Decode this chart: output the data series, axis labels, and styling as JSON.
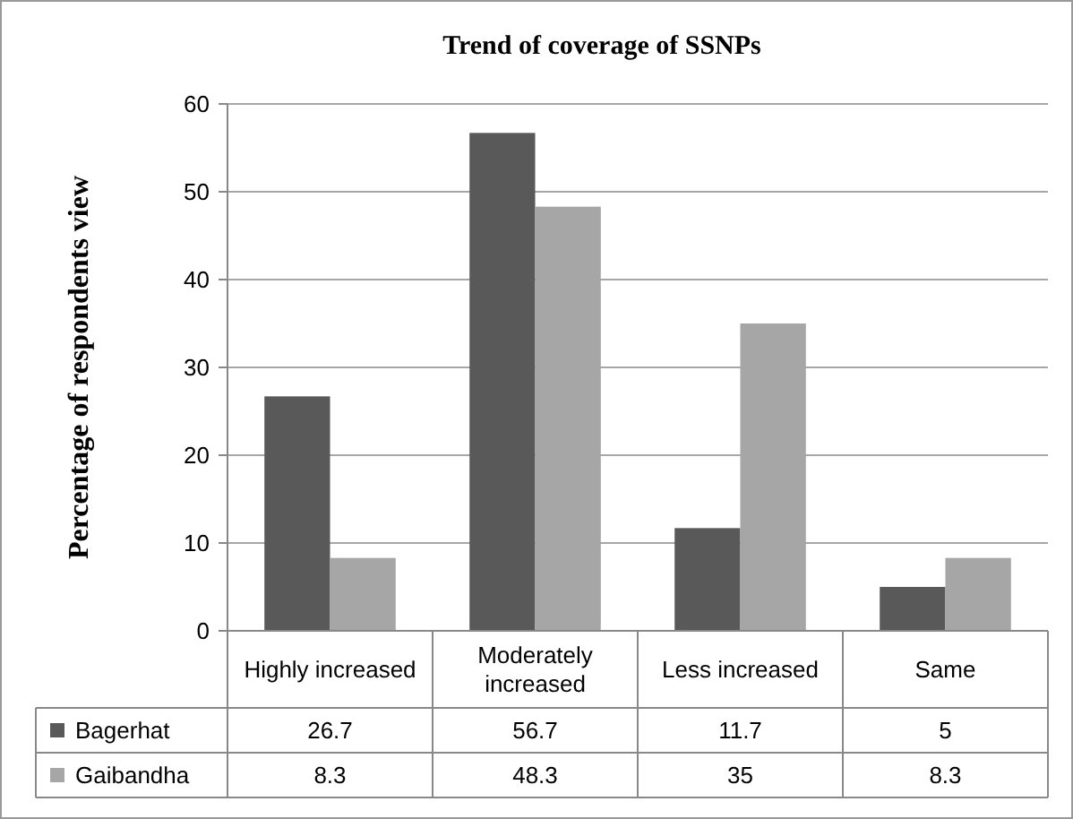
{
  "chart_data": {
    "type": "bar",
    "title": "Trend of coverage of SSNPs",
    "ylabel": "Percentage of respondents view",
    "categories": [
      "Highly increased",
      "Moderately increased",
      "Less increased",
      "Same"
    ],
    "series": [
      {
        "name": "Bagerhat",
        "color": "#595959",
        "values": [
          26.7,
          56.7,
          11.7,
          5
        ]
      },
      {
        "name": "Gaibandha",
        "color": "#a6a6a6",
        "values": [
          8.3,
          48.3,
          35,
          8.3
        ]
      }
    ],
    "ylim": [
      0,
      60
    ],
    "yticks": [
      0,
      10,
      20,
      30,
      40,
      50,
      60
    ],
    "grid": "y",
    "legend": "bottom",
    "data_labels": true
  }
}
